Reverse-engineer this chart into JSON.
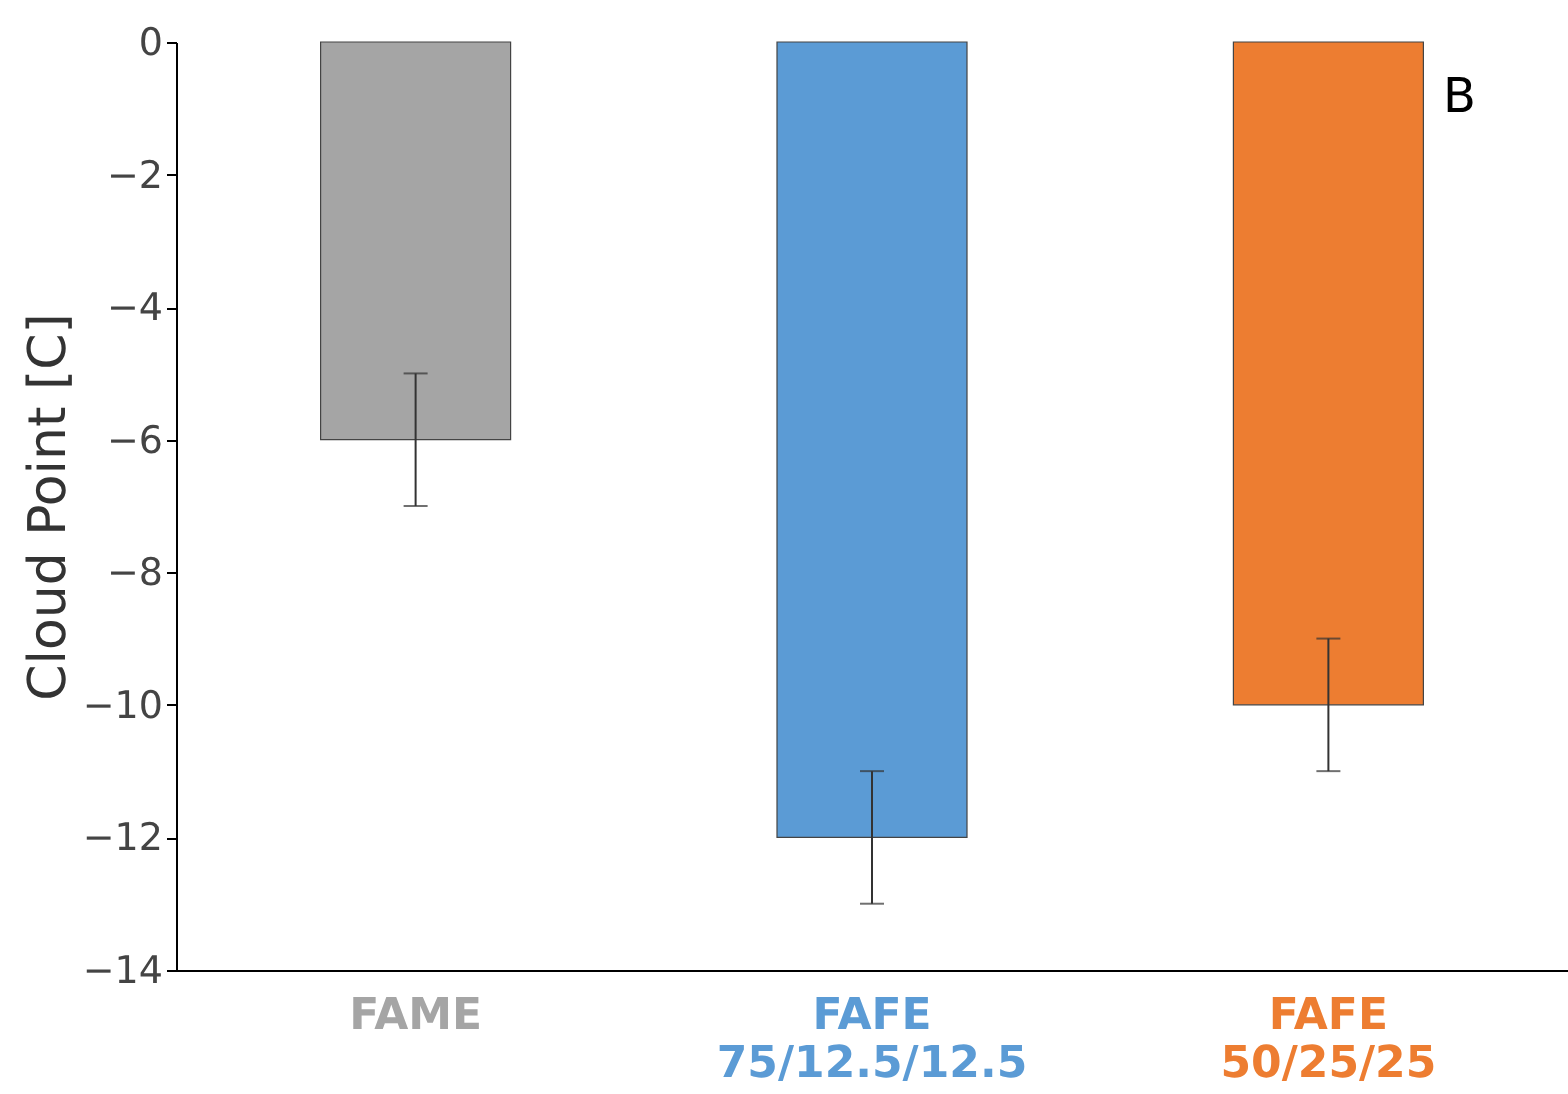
{
  "chart_data": {
    "type": "bar",
    "ylabel": "Cloud Point [C]",
    "categories": [
      "FAME",
      "FAFE 75/12.5/12.5",
      "FAFE 50/25/25"
    ],
    "values": [
      -6,
      -12,
      -10
    ],
    "errors": [
      1,
      1,
      1
    ],
    "colors": [
      "#a5a5a5",
      "#5b9bd5",
      "#ed7d31"
    ],
    "ylim": [
      -14,
      0
    ],
    "yticks": [
      0,
      -2,
      -4,
      -6,
      -8,
      -10,
      -12,
      -14
    ],
    "grid": false,
    "legend": false,
    "annotations": [
      "B"
    ]
  }
}
